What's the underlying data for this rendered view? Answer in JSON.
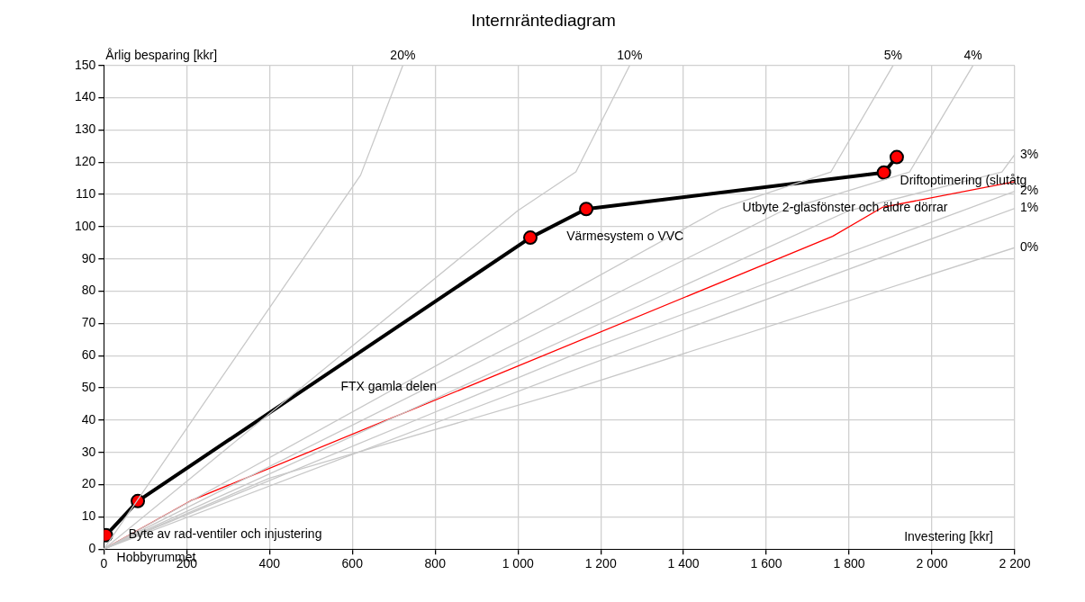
{
  "chart_data": {
    "type": "line",
    "title": "Internräntediagram",
    "ylabel": "Årlig besparing [kkr]",
    "xlabel": "Investering [kkr]",
    "xlim": [
      0,
      2200
    ],
    "ylim": [
      0,
      150
    ],
    "xticks": [
      0,
      200,
      400,
      600,
      800,
      {
        "value": 1000,
        "label": "1 000"
      },
      {
        "value": 1200,
        "label": "1 200"
      },
      {
        "value": 1400,
        "label": "1 400"
      },
      {
        "value": 1600,
        "label": "1 600"
      },
      {
        "value": 1800,
        "label": "1 800"
      },
      {
        "value": 2000,
        "label": "2 000"
      },
      {
        "value": 2200,
        "label": "2 200"
      }
    ],
    "yticks": [
      0,
      10,
      20,
      30,
      40,
      50,
      60,
      70,
      80,
      90,
      100,
      110,
      120,
      130,
      140,
      150
    ],
    "grid": true,
    "legend": false,
    "line_style": "solid",
    "series": [
      {
        "name": "20%",
        "color": "#c8c8c8",
        "marker": "none",
        "x": [
          0,
          620,
          722
        ],
        "values": [
          0,
          116,
          150
        ]
      },
      {
        "name": "10%",
        "color": "#c8c8c8",
        "marker": "none",
        "x": [
          0,
          1000,
          1140,
          1270
        ],
        "values": [
          0,
          105,
          117,
          150
        ]
      },
      {
        "name": "5%",
        "color": "#c8c8c8",
        "marker": "none",
        "x": [
          0,
          1491,
          1756,
          1906
        ],
        "values": [
          0,
          105.7,
          117,
          150
        ]
      },
      {
        "name": "4%",
        "color": "#c8c8c8",
        "marker": "none",
        "x": [
          0,
          1640,
          1946,
          2099
        ],
        "values": [
          0,
          105,
          117,
          150
        ]
      },
      {
        "name": "3%",
        "color": "#c8c8c8",
        "marker": "none",
        "x": [
          0,
          1800,
          2169,
          2200
        ],
        "values": [
          0,
          105,
          117,
          122.4
        ]
      },
      {
        "name": "2%",
        "color": "#c8c8c8",
        "marker": "none",
        "x": [
          0,
          1135,
          2200
        ],
        "values": [
          0,
          60.3,
          111
        ]
      },
      {
        "name": "1%",
        "color": "#c8c8c8",
        "marker": "none",
        "x": [
          0,
          1135,
          2200
        ],
        "values": [
          0,
          55.5,
          105.7
        ]
      },
      {
        "name": "0%",
        "color": "#c8c8c8",
        "marker": "none",
        "x": [
          0,
          400,
          1135,
          2200
        ],
        "values": [
          0,
          22,
          49.7,
          93.5
        ]
      },
      {
        "color": "#ff0000",
        "marker": "none",
        "x": [
          0,
          210,
          1760,
          1880,
          2200
        ],
        "values": [
          0,
          15,
          97,
          106,
          114
        ]
      },
      {
        "color": "#000000",
        "marker": "circle",
        "x": [
          5,
          82,
          1030,
          1165,
          1884,
          1915
        ],
        "values": [
          4.3,
          14.9,
          96.6,
          105.5,
          116.8,
          121.6
        ]
      }
    ],
    "annotations": [
      "Hobbyrummet",
      "Byte av rad-ventiler och injustering",
      "FTX gamla delen",
      "Värmesystem o VVC",
      "Utbyte 2-glasfönster och äldre dörrar",
      "Driftoptimering (slutåtg"
    ]
  }
}
